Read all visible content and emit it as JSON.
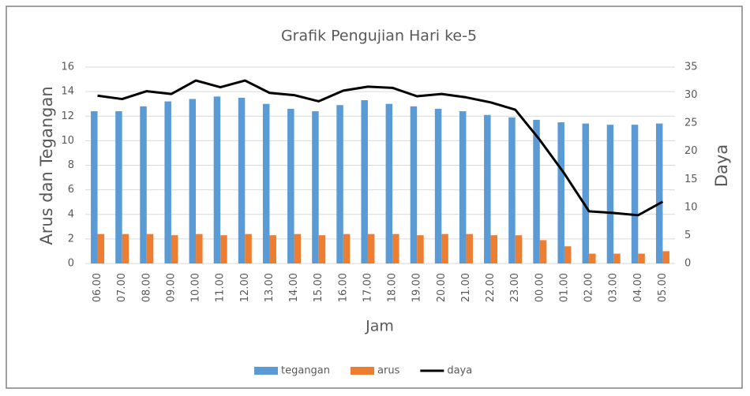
{
  "chart_data": {
    "type": "bar",
    "title": "Grafik Pengujian Hari ke-5",
    "x_label": "Jam",
    "y_label": "Arus dan Tegangan",
    "y2_label": "Daya",
    "categories": [
      "06.00",
      "07.00",
      "08.00",
      "09.00",
      "10.00",
      "11.00",
      "12.00",
      "13.00",
      "14.00",
      "15.00",
      "16.00",
      "17.00",
      "18.00",
      "19.00",
      "20.00",
      "21.00",
      "22.00",
      "23.00",
      "00.00",
      "01.00",
      "02.00",
      "03.00",
      "04.00",
      "05.00"
    ],
    "series": [
      {
        "name": "tegangan",
        "type": "bar",
        "color": "#5b9bd5",
        "values": [
          12.4,
          12.4,
          12.8,
          13.2,
          13.4,
          13.6,
          13.5,
          13.0,
          12.6,
          12.4,
          12.9,
          13.3,
          13.0,
          12.8,
          12.6,
          12.4,
          12.1,
          11.9,
          11.7,
          11.5,
          11.4,
          11.3,
          11.3,
          11.4
        ]
      },
      {
        "name": "arus",
        "type": "bar",
        "color": "#ed7d31",
        "values": [
          2.4,
          2.4,
          2.4,
          2.3,
          2.4,
          2.3,
          2.4,
          2.3,
          2.4,
          2.3,
          2.4,
          2.4,
          2.4,
          2.3,
          2.4,
          2.4,
          2.3,
          2.3,
          1.9,
          1.4,
          0.8,
          0.8,
          0.8,
          1.0
        ]
      },
      {
        "name": "daya",
        "type": "line",
        "axis": "y2",
        "color": "#000000",
        "values": [
          29.9,
          29.3,
          30.7,
          30.2,
          32.6,
          31.4,
          32.6,
          30.4,
          30.0,
          28.9,
          30.8,
          31.5,
          31.3,
          29.8,
          30.2,
          29.6,
          28.7,
          27.4,
          22.0,
          16.0,
          9.3,
          9.0,
          8.6,
          11.0
        ]
      }
    ],
    "ylim": [
      0,
      16
    ],
    "yticks": [
      0,
      2,
      4,
      6,
      8,
      10,
      12,
      14,
      16
    ],
    "y2lim": [
      0,
      35
    ],
    "y2ticks": [
      0,
      5,
      10,
      15,
      20,
      25,
      30,
      35
    ],
    "grid": true,
    "legend": "bottom"
  }
}
